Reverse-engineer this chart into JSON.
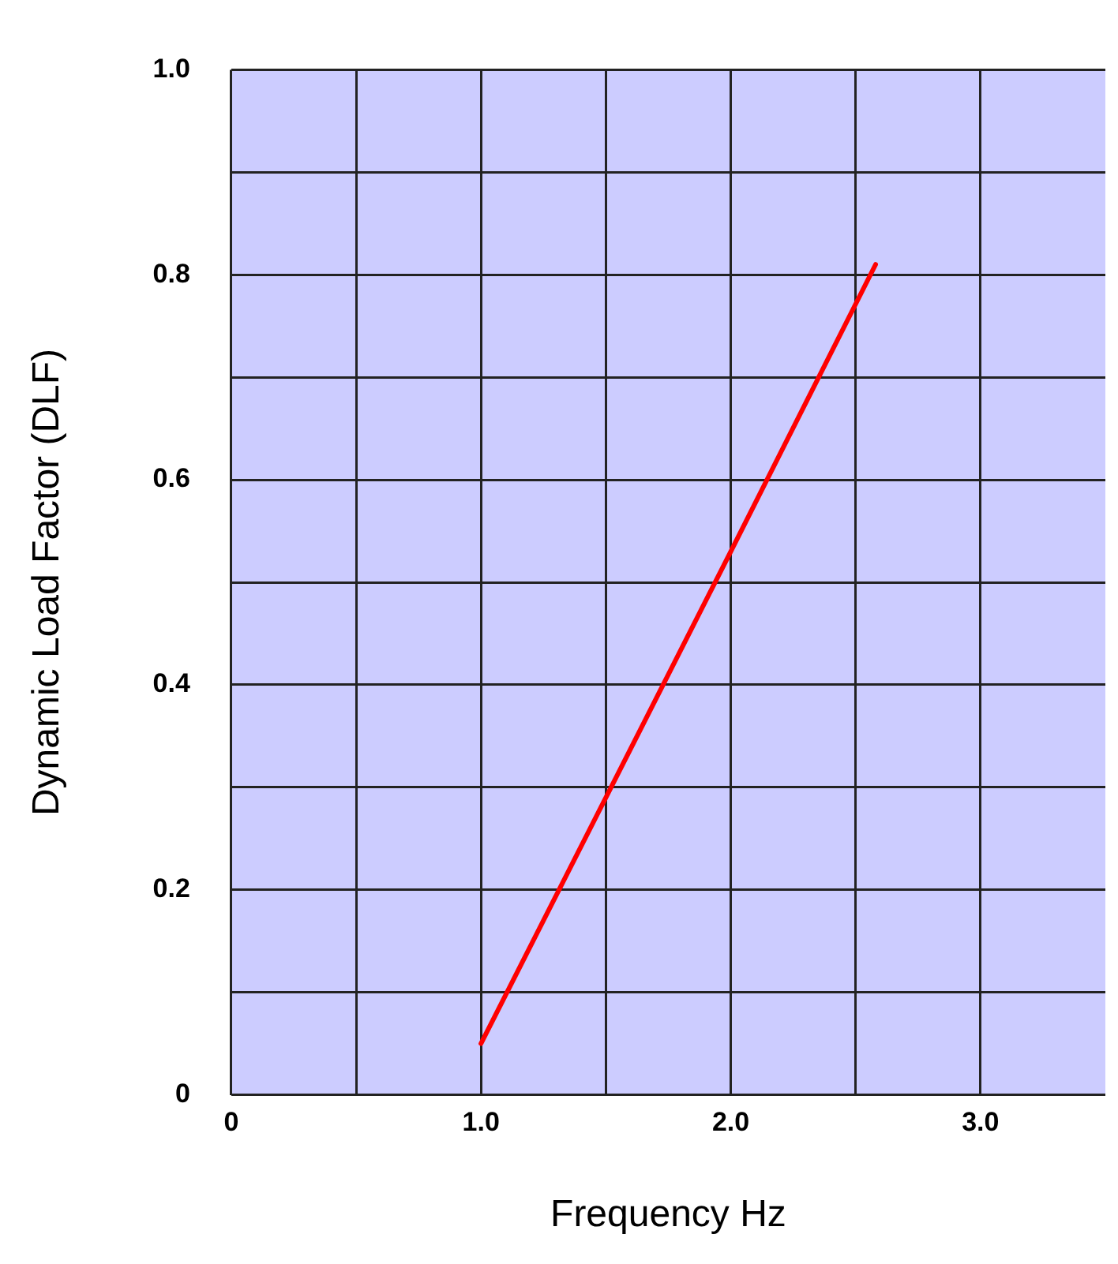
{
  "chart_data": {
    "type": "line",
    "xlabel": "Frequency Hz",
    "ylabel": "Dynamic Load Factor (DLF)",
    "series": [
      {
        "color": "#ff0000",
        "x": [
          1.0,
          1.5,
          2.0,
          2.58
        ],
        "values": [
          0.05,
          0.29,
          0.53,
          0.81
        ]
      }
    ],
    "xlim": [
      0,
      3.5
    ],
    "xticks": [
      0,
      {
        "value": 0.5,
        "label": null
      },
      {
        "value": 1,
        "label": "1.0"
      },
      {
        "value": 1.5,
        "label": null
      },
      {
        "value": 2,
        "label": "2.0"
      },
      {
        "value": 2.5,
        "label": null
      },
      {
        "value": 3,
        "label": "3.0"
      }
    ],
    "ylim": [
      0,
      1
    ],
    "yticks": [
      0,
      {
        "value": 0.1,
        "label": null
      },
      {
        "value": 0.2,
        "label": "0.2"
      },
      {
        "value": 0.3,
        "label": null
      },
      {
        "value": 0.4,
        "label": "0.4"
      },
      {
        "value": 0.5,
        "label": null
      },
      {
        "value": 0.6,
        "label": "0.6"
      },
      {
        "value": 0.7,
        "label": null
      },
      {
        "value": 0.8,
        "label": "0.8"
      },
      {
        "value": 0.9,
        "label": null
      },
      {
        "value": 1,
        "label": "1.0"
      }
    ],
    "grid": true,
    "marker": "none",
    "line_style": "solid",
    "legend": false
  }
}
